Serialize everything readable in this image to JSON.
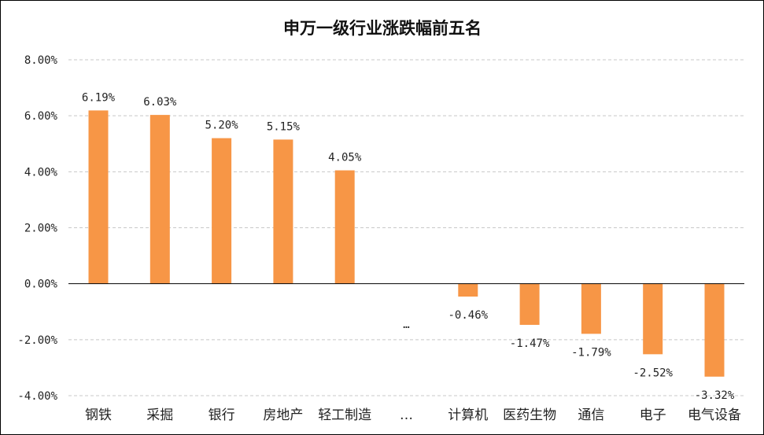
{
  "chart_data": {
    "type": "bar",
    "title": "申万一级行业涨跌幅前五名",
    "categories": [
      "钢铁",
      "采掘",
      "银行",
      "房地产",
      "轻工制造",
      "…",
      "计算机",
      "医药生物",
      "通信",
      "电子",
      "电气设备"
    ],
    "values": [
      6.19,
      6.03,
      5.2,
      5.15,
      4.05,
      null,
      -0.46,
      -1.47,
      -1.79,
      -2.52,
      -3.32
    ],
    "labels": [
      "6.19%",
      "6.03%",
      "5.20%",
      "5.15%",
      "4.05%",
      "…",
      "-0.46%",
      "-1.47%",
      "-1.79%",
      "-2.52%",
      "-3.32%"
    ],
    "ylim": [
      -4,
      8
    ],
    "yticks": [
      8,
      6,
      4,
      2,
      0,
      -2,
      -4
    ],
    "ytick_labels": [
      "8.00%",
      "6.00%",
      "4.00%",
      "2.00%",
      "0.00%",
      "-2.00%",
      "-4.00%"
    ],
    "xlabel": "",
    "ylabel": "",
    "grid": true,
    "bar_color": "#F79646"
  }
}
